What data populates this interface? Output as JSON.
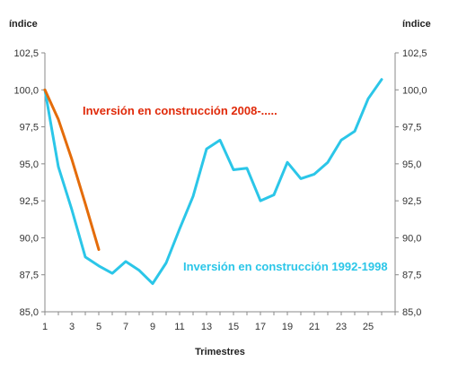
{
  "chart_data": {
    "type": "line",
    "title": "",
    "xlabel": "Trimestres",
    "ylabel_left": "índice",
    "ylabel_right": "índice",
    "ylim": [
      85,
      102.5
    ],
    "xlim": [
      1,
      27
    ],
    "yticks": [
      "85,0",
      "87,5",
      "90,0",
      "92,5",
      "95,0",
      "97,5",
      "100,0",
      "102,5"
    ],
    "yticks_values": [
      85,
      87.5,
      90,
      92.5,
      95,
      97.5,
      100,
      102.5
    ],
    "xticks": [
      1,
      3,
      5,
      7,
      9,
      11,
      13,
      15,
      17,
      19,
      21,
      23,
      25
    ],
    "grid": false,
    "legend": "none",
    "series": [
      {
        "name": "Inversión en construcción 2008-.....",
        "color": "#E46C0A",
        "x": [
          1,
          2,
          3,
          4,
          5
        ],
        "values": [
          100.0,
          98.0,
          95.3,
          92.3,
          89.2
        ]
      },
      {
        "name": "Inversión en construcción 1992-1998",
        "color": "#2BC6E8",
        "x": [
          1,
          2,
          3,
          4,
          5,
          6,
          7,
          8,
          9,
          10,
          11,
          12,
          13,
          14,
          15,
          16,
          17,
          18,
          19,
          20,
          21,
          22,
          23,
          24,
          25,
          26
        ],
        "values": [
          100.0,
          94.8,
          91.9,
          88.7,
          88.1,
          87.6,
          88.4,
          87.8,
          86.9,
          88.3,
          90.6,
          92.8,
          96.0,
          96.6,
          94.6,
          94.7,
          92.5,
          92.9,
          95.1,
          94.0,
          94.3,
          95.1,
          96.6,
          97.2,
          99.4,
          100.7
        ]
      }
    ],
    "annotations": [
      {
        "text": "Inversión en construcción  2008-.....",
        "color": "#E02A0A"
      },
      {
        "text": "Inversión en construcción 1992-1998",
        "color": "#2BC6E8"
      }
    ]
  }
}
